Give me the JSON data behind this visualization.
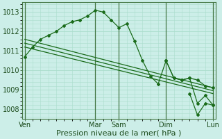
{
  "bg_color": "#cceee8",
  "grid_color": "#aaddcc",
  "line_color": "#1a6b1a",
  "marker_color": "#1a6b1a",
  "xlabel": "Pression niveau de la mer( hPa )",
  "xlabel_fontsize": 8,
  "ylim": [
    1007.5,
    1013.5
  ],
  "yticks": [
    1008,
    1009,
    1010,
    1011,
    1012,
    1013
  ],
  "xtick_labels": [
    "Ven",
    "Mar",
    "Sam",
    "Dim",
    "Lun"
  ],
  "xtick_positions": [
    0,
    9,
    12,
    18,
    24
  ],
  "vlines": [
    0,
    9,
    12,
    18,
    24
  ],
  "series1_x": [
    0,
    1,
    2,
    3,
    4,
    5,
    6,
    7,
    8,
    9,
    10,
    11,
    12,
    13,
    14,
    15,
    16,
    17,
    18,
    19,
    20,
    21,
    22,
    23,
    24
  ],
  "series1_y": [
    1010.7,
    1011.2,
    1011.6,
    1011.8,
    1012.0,
    1012.3,
    1012.5,
    1012.6,
    1012.8,
    1013.1,
    1013.0,
    1012.6,
    1012.2,
    1012.4,
    1011.5,
    1010.5,
    1009.7,
    1009.3,
    1010.5,
    1009.6,
    1009.5,
    1009.6,
    1009.5,
    1009.2,
    1009.1
  ],
  "trend1_x": [
    0,
    24
  ],
  "trend1_y": [
    1011.6,
    1009.1
  ],
  "trend2_x": [
    0,
    24
  ],
  "trend2_y": [
    1011.4,
    1008.95
  ],
  "trend3_x": [
    0,
    24
  ],
  "trend3_y": [
    1011.2,
    1008.8
  ],
  "series2_x": [
    18,
    19,
    20,
    21,
    22,
    23,
    24
  ],
  "series2_y": [
    1010.5,
    1009.6,
    1009.5,
    1009.6,
    1008.3,
    1008.7,
    1008.2
  ],
  "series3_x": [
    21,
    22,
    23,
    24
  ],
  "series3_y": [
    1008.8,
    1007.7,
    1008.3,
    1008.2
  ]
}
